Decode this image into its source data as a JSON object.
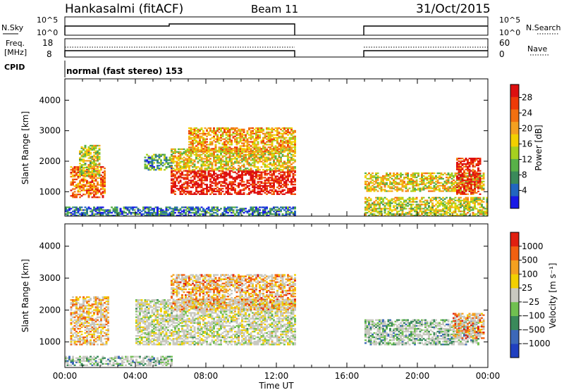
{
  "header": {
    "station": "Hankasalmi (fitACF)",
    "beam": "Beam 11",
    "date": "31/Oct/2015"
  },
  "status_panels": {
    "nsky_label": "N.Sky",
    "nsearch_label": "N.Search",
    "freq_label_1": "Freq.",
    "freq_label_2": "[MHz]",
    "nave_label": "Nave",
    "cpid_label": "CPID",
    "cpid_text": "normal (fast stereo) 153",
    "noise_left_ticks": [
      "10^5",
      "10^0"
    ],
    "noise_right_ticks": [
      "10^5",
      "10^0"
    ],
    "freq_left_ticks": [
      "18",
      "8"
    ],
    "freq_right_ticks": [
      "60",
      "0"
    ]
  },
  "chart_data": [
    {
      "type": "heatmap",
      "panel": "power",
      "ylabel": "Slant Range [km]",
      "ylim": [
        200,
        4700
      ],
      "yticks": [
        1000,
        2000,
        3000,
        4000
      ],
      "xlim_hours": [
        0,
        24
      ],
      "colorbar_label": "Power [dB]",
      "colorbar_ticks": [
        4,
        8,
        12,
        16,
        20,
        24,
        28
      ],
      "colorbar_colors": [
        "#1a1ae6",
        "#2266c0",
        "#3a8a5a",
        "#58b048",
        "#a6d020",
        "#f2d000",
        "#f4a020",
        "#f27010",
        "#ee3a08",
        "#dd1010"
      ],
      "data_gap_hours": [
        13.0,
        17.0
      ],
      "regions": [
        {
          "x0": 0.3,
          "x1": 2.3,
          "r0": 800,
          "r1": 1800,
          "level": 0.75
        },
        {
          "x0": 0.8,
          "x1": 2.0,
          "r0": 1500,
          "r1": 2500,
          "level": 0.5
        },
        {
          "x0": 4.5,
          "x1": 6.0,
          "r0": 1700,
          "r1": 2200,
          "level": 0.3
        },
        {
          "x0": 6.0,
          "x1": 13.0,
          "r0": 900,
          "r1": 1700,
          "level": 0.95
        },
        {
          "x0": 6.0,
          "x1": 13.0,
          "r0": 1700,
          "r1": 2400,
          "level": 0.55
        },
        {
          "x0": 7.0,
          "x1": 13.0,
          "r0": 2300,
          "r1": 3100,
          "level": 0.65
        },
        {
          "x0": 17.0,
          "x1": 23.8,
          "r0": 1000,
          "r1": 1600,
          "level": 0.55
        },
        {
          "x0": 22.2,
          "x1": 23.6,
          "r0": 900,
          "r1": 2100,
          "level": 0.9
        },
        {
          "x0": 0.0,
          "x1": 13.0,
          "r0": 200,
          "r1": 500,
          "level": 0.2
        },
        {
          "x0": 17.0,
          "x1": 24.0,
          "r0": 200,
          "r1": 800,
          "level": 0.5
        }
      ]
    },
    {
      "type": "heatmap",
      "panel": "velocity",
      "ylabel": "Slant Range [km]",
      "xlabel": "Time UT",
      "ylim": [
        200,
        4700
      ],
      "yticks": [
        1000,
        2000,
        3000,
        4000
      ],
      "xlim_hours": [
        0,
        24
      ],
      "xticks": [
        "00:00",
        "04:00",
        "08:00",
        "12:00",
        "16:00",
        "20:00",
        "00:00"
      ],
      "colorbar_label": "Velocity [m s⁻¹]",
      "colorbar_ticks": [
        "1000",
        "500",
        "100",
        "25",
        "−25",
        "−100",
        "−500",
        "−1000"
      ],
      "colorbar_colors": [
        "#2040c0",
        "#3c68b8",
        "#3a8a5a",
        "#70c050",
        "#c8c8c0",
        "#f2d000",
        "#f4a020",
        "#f26010",
        "#e02010"
      ],
      "data_gap_hours": [
        13.0,
        17.0
      ],
      "regions": [
        {
          "x0": 0.3,
          "x1": 2.5,
          "r0": 900,
          "r1": 2400,
          "level": -0.4
        },
        {
          "x0": 4.0,
          "x1": 13.0,
          "r0": 900,
          "r1": 2300,
          "level": 0.0
        },
        {
          "x0": 6.0,
          "x1": 13.0,
          "r0": 2000,
          "r1": 3100,
          "level": -0.5
        },
        {
          "x0": 17.0,
          "x1": 23.5,
          "r0": 900,
          "r1": 1700,
          "level": 0.3
        },
        {
          "x0": 22.0,
          "x1": 23.8,
          "r0": 1100,
          "r1": 1900,
          "level": -0.6
        },
        {
          "x0": 0.0,
          "x1": 6.0,
          "r0": 250,
          "r1": 550,
          "level": 0.35
        }
      ]
    }
  ]
}
